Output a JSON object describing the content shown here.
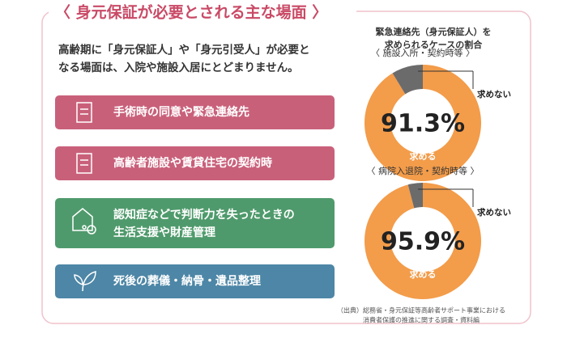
{
  "header": {
    "title": "〈 身元保証が必要とされる主な場面 〉"
  },
  "intro": [
    "高齢期に「身元保証人」や「身元引受人」が必要と",
    "なる場面は、入院や施設入居にとどまりません。"
  ],
  "items": [
    {
      "lines": [
        "手術時の同意や緊急連絡先"
      ]
    },
    {
      "lines": [
        "高齢者施設や賃貸住宅の契約時"
      ]
    },
    {
      "lines": [
        "認知症などで判断力を失ったときの",
        "生活支援や財産管理"
      ]
    },
    {
      "lines": [
        "死後の葬儀・納骨・遺品整理"
      ]
    }
  ],
  "charts_heading": [
    "緊急連絡先（身元保証人）を",
    "求められるケースの割合"
  ],
  "chart_data": [
    {
      "type": "donut",
      "title": "〈 施設入所・契約時等 〉",
      "categories": [
        "求める",
        "求めない"
      ],
      "values": [
        91.3,
        8.7
      ],
      "value_labels": [
        "91.3%",
        null
      ],
      "colors": [
        "#f39c4a",
        "#6b6b6b"
      ]
    },
    {
      "type": "donut",
      "title": "〈 病院入退院・契約時等 〉",
      "categories": [
        "求める",
        "求めない"
      ],
      "values": [
        95.9,
        4.1
      ],
      "value_labels": [
        "95.9%",
        null
      ],
      "colors": [
        "#f39c4a",
        "#6b6b6b"
      ]
    }
  ],
  "source": [
    "（出典）総務省・身元保証等高齢者サポート事業における",
    "消費者保護の推進に関する調査・資料編"
  ]
}
